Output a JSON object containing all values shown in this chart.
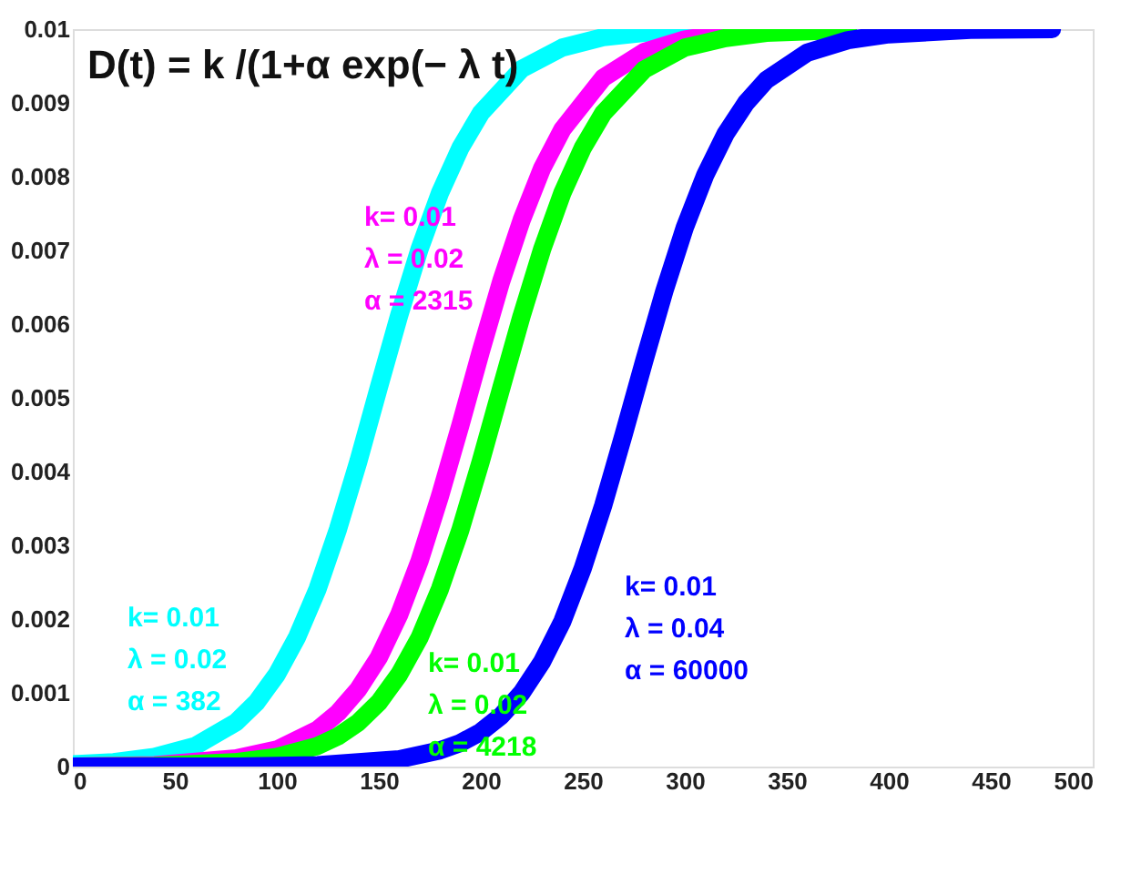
{
  "chart_data": {
    "type": "line",
    "title": "D(t) = k /(1+α exp(− λ t)",
    "xlim": [
      0,
      500
    ],
    "xticks": [
      0,
      50,
      100,
      150,
      200,
      250,
      300,
      350,
      400,
      450,
      500
    ],
    "ylim": [
      0,
      0.01
    ],
    "yticks": [
      0,
      0.001,
      0.002,
      0.003,
      0.004,
      0.005,
      0.006,
      0.007,
      0.008,
      0.009,
      0.01
    ],
    "grid": false,
    "marker": "none",
    "line_style": "solid",
    "series": [
      {
        "color": "#00ffff",
        "x": [
          0,
          20,
          40,
          60,
          80,
          90,
          100,
          110,
          120,
          130,
          140,
          150,
          160,
          170,
          180,
          190,
          200,
          220,
          240,
          260,
          280,
          300
        ],
        "values": [
          3e-05,
          6e-05,
          0.00013,
          0.00028,
          0.0006,
          0.00087,
          0.00125,
          0.00176,
          0.00241,
          0.00322,
          0.00414,
          0.00514,
          0.00612,
          0.00702,
          0.00778,
          0.00839,
          0.00886,
          0.00946,
          0.00975,
          0.00989,
          0.00995,
          0.00998
        ]
      },
      {
        "color": "#ff00ff",
        "x": [
          0,
          40,
          80,
          100,
          120,
          130,
          140,
          150,
          160,
          170,
          180,
          190,
          200,
          210,
          220,
          230,
          240,
          260,
          280,
          300,
          320
        ],
        "values": [
          0,
          2e-05,
          0.00011,
          0.00023,
          0.0005,
          0.00073,
          0.00105,
          0.00148,
          0.00206,
          0.00279,
          0.00367,
          0.00463,
          0.00563,
          0.00658,
          0.00741,
          0.00811,
          0.00864,
          0.00934,
          0.00969,
          0.00986,
          0.00994
        ]
      },
      {
        "color": "#00ff00",
        "x": [
          0,
          40,
          80,
          100,
          120,
          130,
          140,
          150,
          160,
          170,
          180,
          190,
          200,
          210,
          220,
          230,
          240,
          250,
          260,
          280,
          300,
          320,
          340,
          380
        ],
        "values": [
          0,
          1e-05,
          6e-05,
          0.00013,
          0.00028,
          0.00041,
          0.0006,
          0.00087,
          0.00125,
          0.00175,
          0.00241,
          0.00321,
          0.00414,
          0.00513,
          0.00611,
          0.00701,
          0.00778,
          0.00839,
          0.00886,
          0.00945,
          0.00975,
          0.00988,
          0.00995,
          0.00999
        ]
      },
      {
        "color": "#0000ff",
        "x": [
          0,
          80,
          120,
          160,
          180,
          190,
          200,
          210,
          220,
          230,
          240,
          250,
          260,
          270,
          280,
          290,
          300,
          310,
          320,
          330,
          340,
          360,
          380,
          400,
          440,
          480
        ],
        "values": [
          0,
          0,
          2e-05,
          0.0001,
          0.00022,
          0.00032,
          0.00047,
          0.00069,
          0.001,
          0.00142,
          0.00197,
          0.00269,
          0.00354,
          0.0045,
          0.00549,
          0.00645,
          0.00731,
          0.00802,
          0.00858,
          0.009,
          0.00931,
          0.00968,
          0.00985,
          0.00993,
          0.00999,
          0.01
        ]
      }
    ],
    "annotations": [
      "k= 0.01\nλ = 0.02\nα = 382",
      "k= 0.01\nλ = 0.02\nα =    2315",
      "k= 0.01\nλ = 0.02\nα =    4218",
      "k= 0.01\nλ = 0.04\nα =    60000"
    ]
  }
}
